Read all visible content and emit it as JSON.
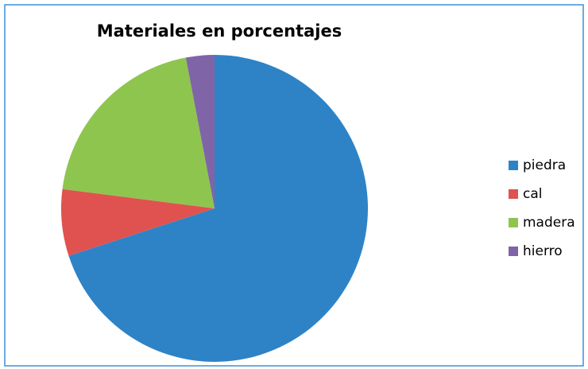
{
  "chart_data": {
    "type": "pie",
    "title": "Materiales en porcentajes",
    "categories": [
      "piedra",
      "cal",
      "madera",
      "hierro"
    ],
    "values": [
      70,
      7,
      20,
      3
    ],
    "colors": [
      "#2e83c6",
      "#e0524f",
      "#8ec54f",
      "#8064a8"
    ],
    "legend": "right"
  }
}
